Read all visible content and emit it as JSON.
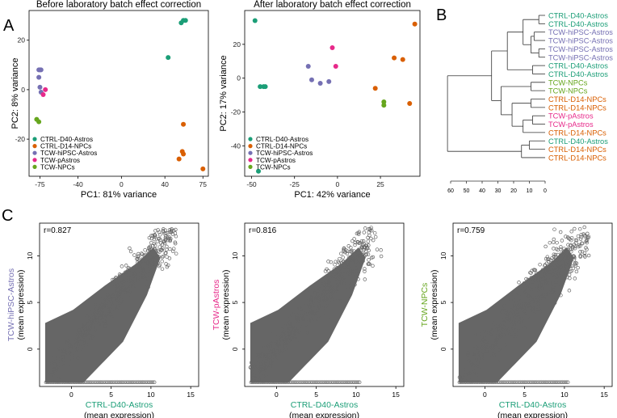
{
  "panel_labels": {
    "a": "A",
    "b": "B",
    "c": "C"
  },
  "colors": {
    "ctrl_d40": "#1b9e77",
    "ctrl_d14": "#d95f02",
    "tcw_astros": "#7570b3",
    "tcw_pastros": "#e7298a",
    "tcw_npcs": "#66a61e",
    "grey": "#555555"
  },
  "chart_data": [
    {
      "type": "scatter",
      "title": "Before laboratory batch effect correction",
      "xlabel": "PC1: 81% variance",
      "ylabel": "PC2: 8% variance",
      "xlim": [
        -85,
        80
      ],
      "ylim": [
        -35,
        32
      ],
      "xticks": [
        -75,
        -40,
        0,
        40,
        75
      ],
      "yticks": [
        -20,
        0,
        20
      ],
      "legend_position": "bottom-left",
      "series": [
        {
          "name": "CTRL-D40-Astros",
          "color": "#1b9e77",
          "points": [
            [
              55,
              27
            ],
            [
              57,
              28
            ],
            [
              59,
              28
            ],
            [
              43,
              13
            ]
          ]
        },
        {
          "name": "CTRL-D14-NPCs",
          "color": "#d95f02",
          "points": [
            [
              57,
              -14
            ],
            [
              56,
              -25
            ],
            [
              57,
              -26
            ],
            [
              53,
              -28
            ],
            [
              75,
              -32
            ]
          ]
        },
        {
          "name": "TCW-hiPSC-Astros",
          "color": "#7570b3",
          "points": [
            [
              -76,
              8
            ],
            [
              -75,
              8
            ],
            [
              -74,
              8
            ],
            [
              -76,
              5
            ],
            [
              -75,
              1
            ],
            [
              -74,
              -1
            ]
          ]
        },
        {
          "name": "TCW-pAstros",
          "color": "#e7298a",
          "points": [
            [
              -70,
              0
            ],
            [
              -72,
              -2
            ]
          ]
        },
        {
          "name": "TCW-NPCs",
          "color": "#66a61e",
          "points": [
            [
              -78,
              -12
            ],
            [
              -76,
              -13
            ]
          ]
        }
      ]
    },
    {
      "type": "scatter",
      "title": "After laboratory batch effect correction",
      "xlabel": "PC1: 42% variance",
      "ylabel": "PC2: 17% variance",
      "xlim": [
        -54,
        48
      ],
      "ylim": [
        -58,
        40
      ],
      "xticks": [
        -50,
        -25,
        0,
        25
      ],
      "yticks": [
        -40,
        -20,
        0,
        20
      ],
      "legend_position": "bottom-left",
      "series": [
        {
          "name": "CTRL-D40-Astros",
          "color": "#1b9e77",
          "points": [
            [
              -48,
              34
            ],
            [
              -45,
              -5
            ],
            [
              -43,
              -5
            ],
            [
              -42,
              -5
            ],
            [
              -46,
              -55
            ]
          ]
        },
        {
          "name": "CTRL-D14-NPCs",
          "color": "#d95f02",
          "points": [
            [
              45,
              32
            ],
            [
              33,
              12
            ],
            [
              38,
              11
            ],
            [
              22,
              -6
            ],
            [
              42,
              -15
            ]
          ]
        },
        {
          "name": "TCW-hiPSC-Astros",
          "color": "#7570b3",
          "points": [
            [
              -17,
              7
            ],
            [
              -15,
              -1
            ],
            [
              -10,
              -3
            ],
            [
              -5,
              -2
            ]
          ]
        },
        {
          "name": "TCW-pAstros",
          "color": "#e7298a",
          "points": [
            [
              -3,
              18
            ],
            [
              -1,
              7
            ]
          ]
        },
        {
          "name": "TCW-NPCs",
          "color": "#66a61e",
          "points": [
            [
              27,
              -14
            ],
            [
              27,
              -16
            ]
          ]
        }
      ]
    },
    {
      "type": "dendrogram",
      "axis_ticks": [
        60,
        50,
        40,
        30,
        20,
        10,
        0
      ],
      "leaves": [
        {
          "label": "CTRL-D40-Astros",
          "group": "ctrl_d40"
        },
        {
          "label": "CTRL-D40-Astros",
          "group": "ctrl_d40"
        },
        {
          "label": "TCW-hiPSC-Astros",
          "group": "tcw_astros"
        },
        {
          "label": "TCW-hiPSC-Astros",
          "group": "tcw_astros"
        },
        {
          "label": "TCW-hiPSC-Astros",
          "group": "tcw_astros"
        },
        {
          "label": "TCW-hiPSC-Astros",
          "group": "tcw_astros"
        },
        {
          "label": "CTRL-D40-Astros",
          "group": "ctrl_d40"
        },
        {
          "label": "CTRL-D40-Astros",
          "group": "ctrl_d40"
        },
        {
          "label": "TCW-NPCs",
          "group": "tcw_npcs"
        },
        {
          "label": "TCW-NPCs",
          "group": "tcw_npcs"
        },
        {
          "label": "CTRL-D14-NPCs",
          "group": "ctrl_d14"
        },
        {
          "label": "CTRL-D14-NPCs",
          "group": "ctrl_d14"
        },
        {
          "label": "TCW-pAstros",
          "group": "tcw_pastros"
        },
        {
          "label": "TCW-pAstros",
          "group": "tcw_pastros"
        },
        {
          "label": "CTRL-D14-NPCs",
          "group": "ctrl_d14"
        },
        {
          "label": "CTRL-D40-Astros",
          "group": "ctrl_d40"
        },
        {
          "label": "CTRL-D14-NPCs",
          "group": "ctrl_d14"
        },
        {
          "label": "CTRL-D14-NPCs",
          "group": "ctrl_d14"
        }
      ]
    },
    {
      "type": "scatter",
      "correlation": "r=0.827",
      "xlabel": "CTRL-D40-Astros",
      "xlabel_sub": "(mean expression)",
      "ylabel": "TCW-hiPSC-Astros",
      "ylabel_sub": "(mean expression)",
      "xlim": [
        -4,
        16
      ],
      "ylim": [
        -4,
        13.5
      ],
      "xticks": [
        0,
        5,
        10,
        15
      ],
      "yticks": [
        0,
        5,
        10
      ]
    },
    {
      "type": "scatter",
      "correlation": "r=0.816",
      "xlabel": "CTRL-D40-Astros",
      "xlabel_sub": "(mean expression)",
      "ylabel": "TCW-pAstros",
      "ylabel_sub": "(mean expression)",
      "xlim": [
        -4,
        16
      ],
      "ylim": [
        -4,
        13.5
      ],
      "xticks": [
        0,
        5,
        10,
        15
      ],
      "yticks": [
        0,
        5,
        10
      ]
    },
    {
      "type": "scatter",
      "correlation": "r=0.759",
      "xlabel": "CTRL-D40-Astros",
      "xlabel_sub": "(mean expression)",
      "ylabel": "TCW-NPCs",
      "ylabel_sub": "(mean expression)",
      "xlim": [
        -4,
        16
      ],
      "ylim": [
        -4,
        13.5
      ],
      "xticks": [
        0,
        5,
        10,
        15
      ],
      "yticks": [
        0,
        5,
        10
      ]
    }
  ]
}
